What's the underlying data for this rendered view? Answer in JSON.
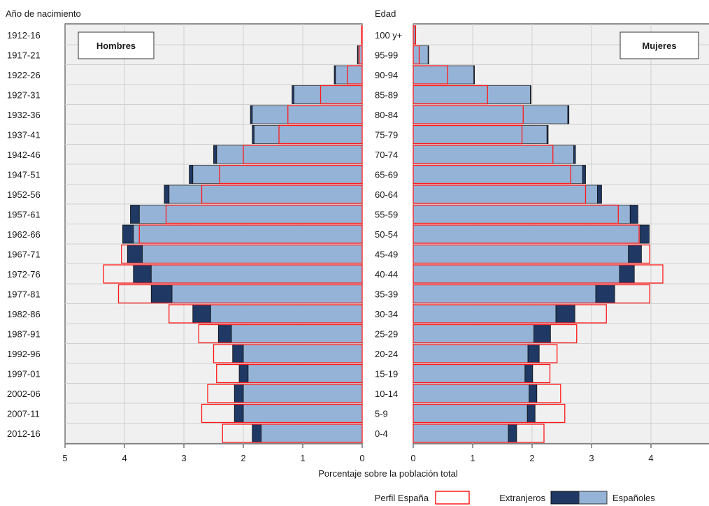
{
  "chart_data": {
    "type": "bar",
    "subtype": "population-pyramid",
    "x_label": "Porcentaje sobre la población total",
    "left_axis_title": "Año de nacimiento",
    "center_axis_title": "Edad",
    "birth_years": [
      "1912-16",
      "1917-21",
      "1922-26",
      "1927-31",
      "1932-36",
      "1937-41",
      "1942-46",
      "1947-51",
      "1952-56",
      "1957-61",
      "1962-66",
      "1967-71",
      "1972-76",
      "1977-81",
      "1982-86",
      "1987-91",
      "1992-96",
      "1997-01",
      "2002-06",
      "2007-11",
      "2012-16"
    ],
    "age_groups": [
      "100 y+",
      "95-99",
      "90-94",
      "85-89",
      "80-84",
      "75-79",
      "70-74",
      "65-69",
      "60-64",
      "55-59",
      "50-54",
      "45-49",
      "40-44",
      "35-39",
      "30-34",
      "25-29",
      "20-24",
      "15-19",
      "10-14",
      "5-9",
      "0-4"
    ],
    "x_range": [
      0,
      5
    ],
    "x_ticks_left": [
      "5",
      "4",
      "3",
      "2",
      "1",
      "0"
    ],
    "x_ticks_right": [
      "0",
      "1",
      "2",
      "3",
      "4",
      "5"
    ],
    "grid": true,
    "panels": {
      "men": {
        "label": "Hombres",
        "espanoles": [
          0.01,
          0.07,
          0.45,
          1.15,
          1.85,
          1.82,
          2.45,
          2.85,
          3.25,
          3.75,
          3.85,
          3.7,
          3.55,
          3.2,
          2.55,
          2.2,
          2.0,
          1.92,
          2.0,
          2.0,
          1.7
        ],
        "extranjeros": [
          0.0,
          0.01,
          0.02,
          0.03,
          0.03,
          0.03,
          0.05,
          0.06,
          0.08,
          0.15,
          0.18,
          0.25,
          0.3,
          0.35,
          0.3,
          0.22,
          0.18,
          0.15,
          0.15,
          0.15,
          0.15
        ],
        "perfil_espana": [
          0.01,
          0.05,
          0.25,
          0.7,
          1.25,
          1.4,
          2.0,
          2.4,
          2.7,
          3.3,
          3.75,
          4.05,
          4.35,
          4.1,
          3.25,
          2.75,
          2.5,
          2.45,
          2.6,
          2.7,
          2.35
        ]
      },
      "women": {
        "label": "Mujeres",
        "espanoles": [
          0.03,
          0.25,
          1.02,
          1.97,
          2.6,
          2.25,
          2.7,
          2.85,
          3.1,
          3.65,
          3.82,
          3.62,
          3.47,
          3.07,
          2.4,
          2.03,
          1.93,
          1.88,
          1.95,
          1.92,
          1.6
        ],
        "extranjeros": [
          0.0,
          0.01,
          0.01,
          0.01,
          0.02,
          0.02,
          0.03,
          0.05,
          0.07,
          0.13,
          0.15,
          0.22,
          0.25,
          0.32,
          0.32,
          0.28,
          0.19,
          0.13,
          0.13,
          0.13,
          0.14
        ],
        "perfil_espana": [
          0.04,
          0.1,
          0.58,
          1.25,
          1.85,
          1.83,
          2.35,
          2.65,
          2.9,
          3.45,
          3.8,
          3.98,
          4.2,
          3.98,
          3.25,
          2.75,
          2.42,
          2.3,
          2.48,
          2.55,
          2.2
        ]
      }
    },
    "legend": {
      "position": "bottom-right",
      "perfil": "Perfil España",
      "extranjeros": "Extranjeros",
      "espanoles": "Españoles"
    },
    "colors": {
      "espanoles": "#95b3d7",
      "extranjeros": "#1f3864",
      "perfil": "#ff1a1a",
      "panel_bg": "#f0f0f0",
      "grid": "#d0d0d0"
    }
  }
}
